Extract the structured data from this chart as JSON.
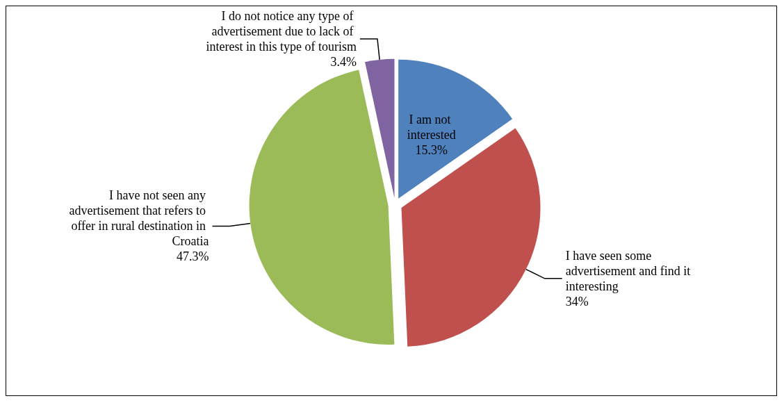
{
  "chart_data": {
    "type": "pie",
    "categories": [
      "I am not interested",
      "I have seen some advertisement and find it interesting",
      "I have not seen any advertisement that refers to offer in rural destination in Croatia",
      "I do not notice any type of advertisement due to lack of interest in this type of tourism"
    ],
    "values": [
      15.3,
      34,
      47.3,
      3.4
    ],
    "value_labels": [
      "15.3%",
      "34%",
      "47.3%",
      "3.4%"
    ],
    "colors": [
      "#4f81bd",
      "#c0504d",
      "#9bbb59",
      "#8064a2"
    ],
    "legend": false
  }
}
